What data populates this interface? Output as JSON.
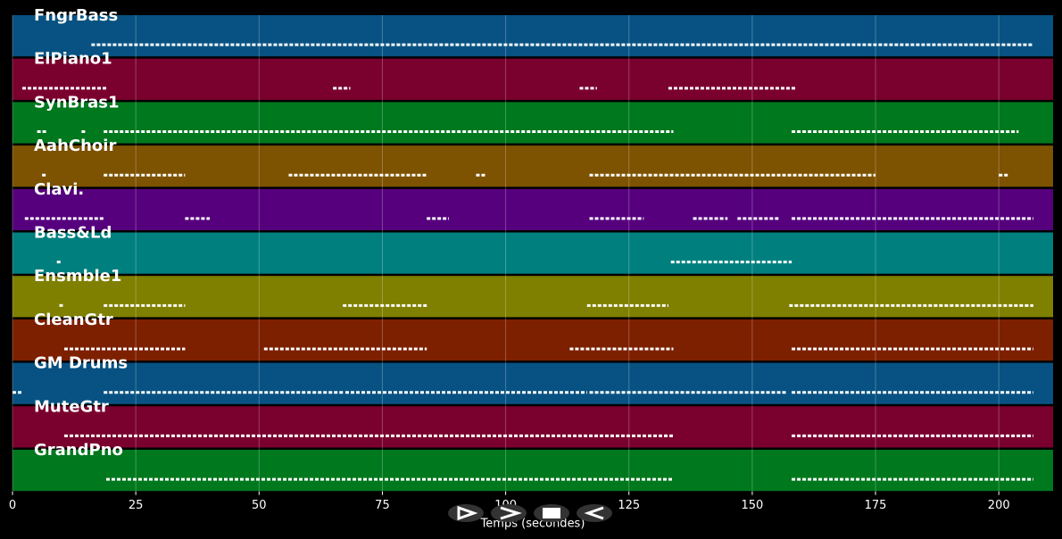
{
  "chart_data": {
    "type": "pianoroll",
    "xlabel": "Temps (secondes)",
    "xlim": [
      0,
      211
    ],
    "xticks": [
      0,
      25,
      50,
      75,
      100,
      125,
      150,
      175,
      200
    ],
    "grid": true,
    "series": [
      {
        "name": "FngrBass",
        "color": "#075282",
        "segments": [
          [
            16,
            207
          ]
        ]
      },
      {
        "name": "ElPiano1",
        "color": "#7a002e",
        "segments": [
          [
            2,
            19
          ],
          [
            65,
            68.5
          ],
          [
            115,
            118.5
          ],
          [
            133,
            159
          ]
        ]
      },
      {
        "name": "SynBras1",
        "color": "#00781e",
        "segments": [
          [
            5,
            7
          ],
          [
            14,
            15
          ],
          [
            18.5,
            134
          ],
          [
            158,
            204
          ]
        ]
      },
      {
        "name": "AahChoir",
        "color": "#7d5200",
        "segments": [
          [
            6,
            7
          ],
          [
            18.5,
            35
          ],
          [
            56,
            84
          ],
          [
            94,
            96
          ],
          [
            117,
            175
          ],
          [
            200,
            202
          ]
        ]
      },
      {
        "name": "Clavi.",
        "color": "#56007e",
        "segments": [
          [
            2.5,
            18.5
          ],
          [
            35,
            40
          ],
          [
            84,
            88.5
          ],
          [
            117,
            128
          ],
          [
            138,
            145
          ],
          [
            147,
            155.5
          ],
          [
            158,
            207
          ]
        ]
      },
      {
        "name": "Bass&Ld",
        "color": "#007f7f",
        "segments": [
          [
            9,
            10
          ],
          [
            133.5,
            158
          ]
        ]
      },
      {
        "name": "Ensmble1",
        "color": "#7f7f00",
        "segments": [
          [
            9.5,
            10.5
          ],
          [
            18.5,
            35
          ],
          [
            67,
            84
          ],
          [
            116.5,
            133
          ],
          [
            157.5,
            207
          ]
        ]
      },
      {
        "name": "CleanGtr",
        "color": "#7d2000",
        "segments": [
          [
            10.5,
            35
          ],
          [
            51,
            84
          ],
          [
            113,
            134
          ],
          [
            158,
            207
          ]
        ]
      },
      {
        "name": "GM Drums",
        "color": "#075282",
        "segments": [
          [
            0,
            2
          ],
          [
            18.5,
            67
          ],
          [
            67.5,
            116.5
          ],
          [
            117,
            157
          ],
          [
            158,
            207
          ]
        ]
      },
      {
        "name": "MuteGtr",
        "color": "#7a002e",
        "segments": [
          [
            10.5,
            134
          ],
          [
            158,
            207
          ]
        ]
      },
      {
        "name": "GrandPno",
        "color": "#00781e",
        "segments": [
          [
            19,
            134
          ],
          [
            158,
            207
          ]
        ]
      }
    ]
  }
}
